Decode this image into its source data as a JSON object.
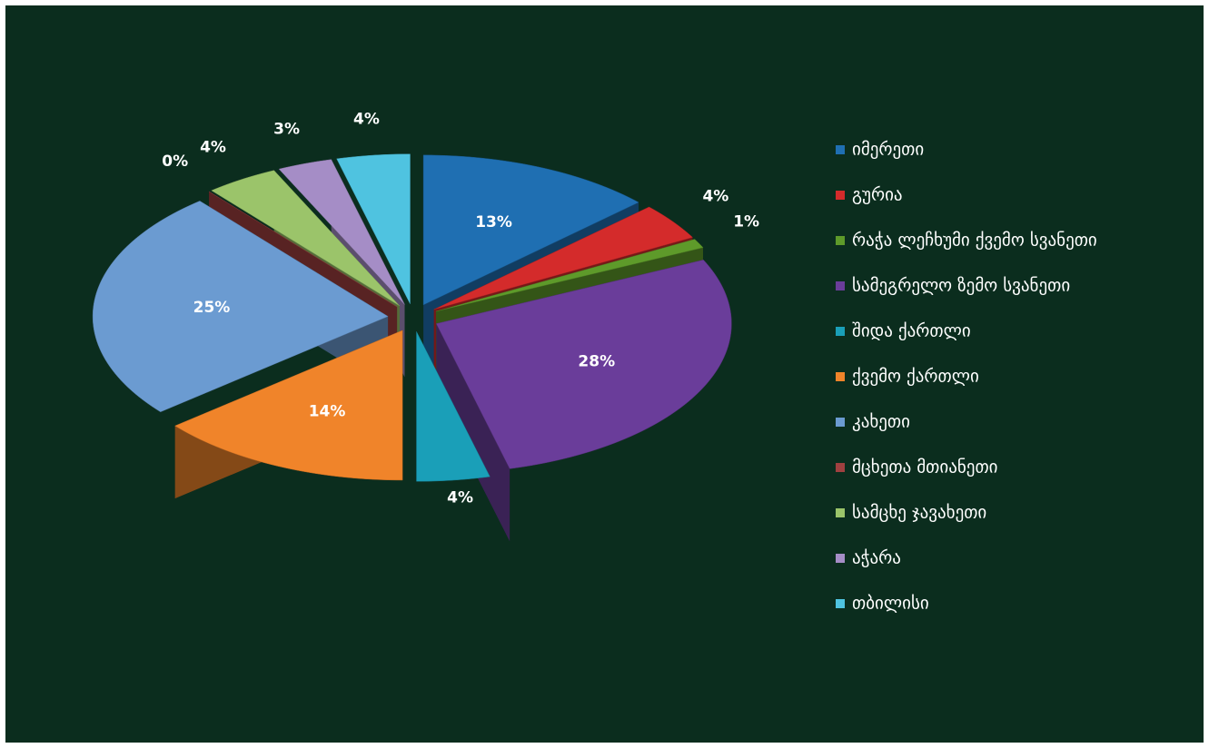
{
  "chart_data": {
    "type": "pie",
    "categories": [
      "იმერეთი",
      "გურია",
      "რაჭა ლეჩხუმი ქვემო სვანეთი",
      "სამეგრელო ზემო სვანეთი",
      "შიდა ქართლი",
      "ქვემო ქართლი",
      "კახეთი",
      "მცხეთა მთიანეთი",
      "სამცხე ჯავახეთი",
      "აჭარა",
      "თბილისი"
    ],
    "values": [
      13,
      4,
      1,
      28,
      4,
      14,
      25,
      0,
      4,
      3,
      4
    ],
    "value_labels": [
      "13%",
      "4%",
      "1%",
      "28%",
      "4%",
      "14%",
      "25%",
      "0%",
      "4%",
      "3%",
      "4%"
    ],
    "colors": [
      "#1f6fb2",
      "#d42b2b",
      "#5e9a2a",
      "#6a3d9a",
      "#1a9fb8",
      "#f0842a",
      "#6b9bd1",
      "#a04040",
      "#9bc46a",
      "#a58dc6",
      "#4fc3e0"
    ],
    "legend": "right",
    "three_d": true,
    "exploded": true
  }
}
